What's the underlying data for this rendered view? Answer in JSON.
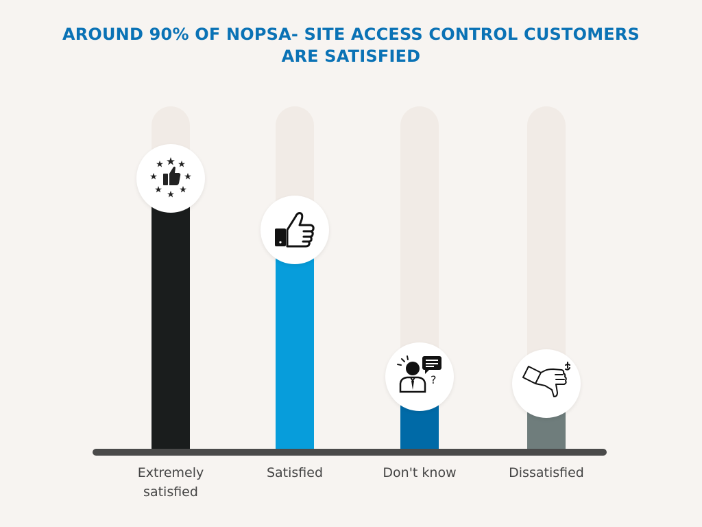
{
  "title": {
    "line1": "AROUND 90% OF NOPSA- SITE ACCESS CONTROL CUSTOMERS",
    "line2": "ARE SATISFIED"
  },
  "chart_data": {
    "type": "bar",
    "title": "AROUND 90% OF NOPSA- SITE ACCESS CONTROL CUSTOMERS ARE SATISFIED",
    "categories": [
      "Extremely satisfied",
      "Satisfied",
      "Don't know",
      "Dissatisfied"
    ],
    "category_lines": [
      [
        "Extremely",
        "satisfied"
      ],
      [
        "Satisfied"
      ],
      [
        "Don't know"
      ],
      [
        "Dissatisfied"
      ]
    ],
    "values": [
      79,
      64,
      21,
      19
    ],
    "ylim": [
      0,
      100
    ],
    "grid": false,
    "bar_colors": [
      "#1a1d1d",
      "#079ddb",
      "#006aa7",
      "#6f7d7c"
    ],
    "track_color": "#f1ebe6",
    "icons": [
      "thumbs-up-stars-icon",
      "thumbs-up-icon",
      "question-person-icon",
      "thumbs-down-icon"
    ]
  }
}
